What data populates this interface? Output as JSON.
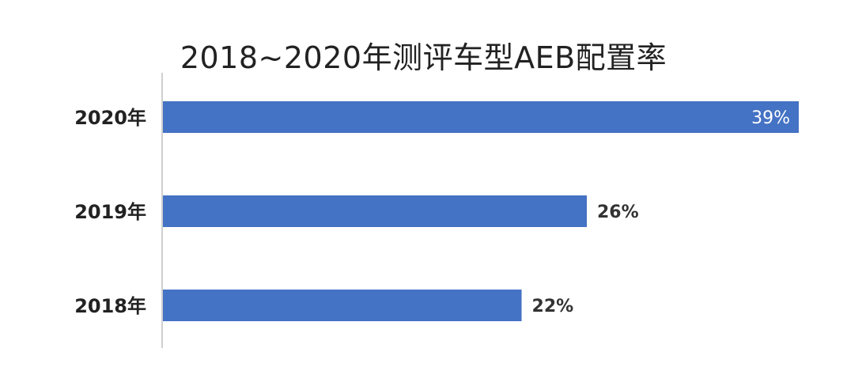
{
  "chart_data": {
    "type": "bar",
    "orientation": "horizontal",
    "title": "2018~2020年测评车型AEB配置率",
    "xlabel": "",
    "ylabel": "",
    "categories": [
      "2020年",
      "2019年",
      "2018年"
    ],
    "values": [
      39,
      26,
      22
    ],
    "data_labels": [
      "39%",
      "26%",
      "22%"
    ],
    "xlim": [
      0,
      39
    ],
    "grid": false,
    "legend": "none",
    "bar_color": "#4472C4",
    "inside_label_color": "#FFFFFF",
    "outside_label_color": "#333333",
    "axis_color": "#BFBFBF"
  }
}
